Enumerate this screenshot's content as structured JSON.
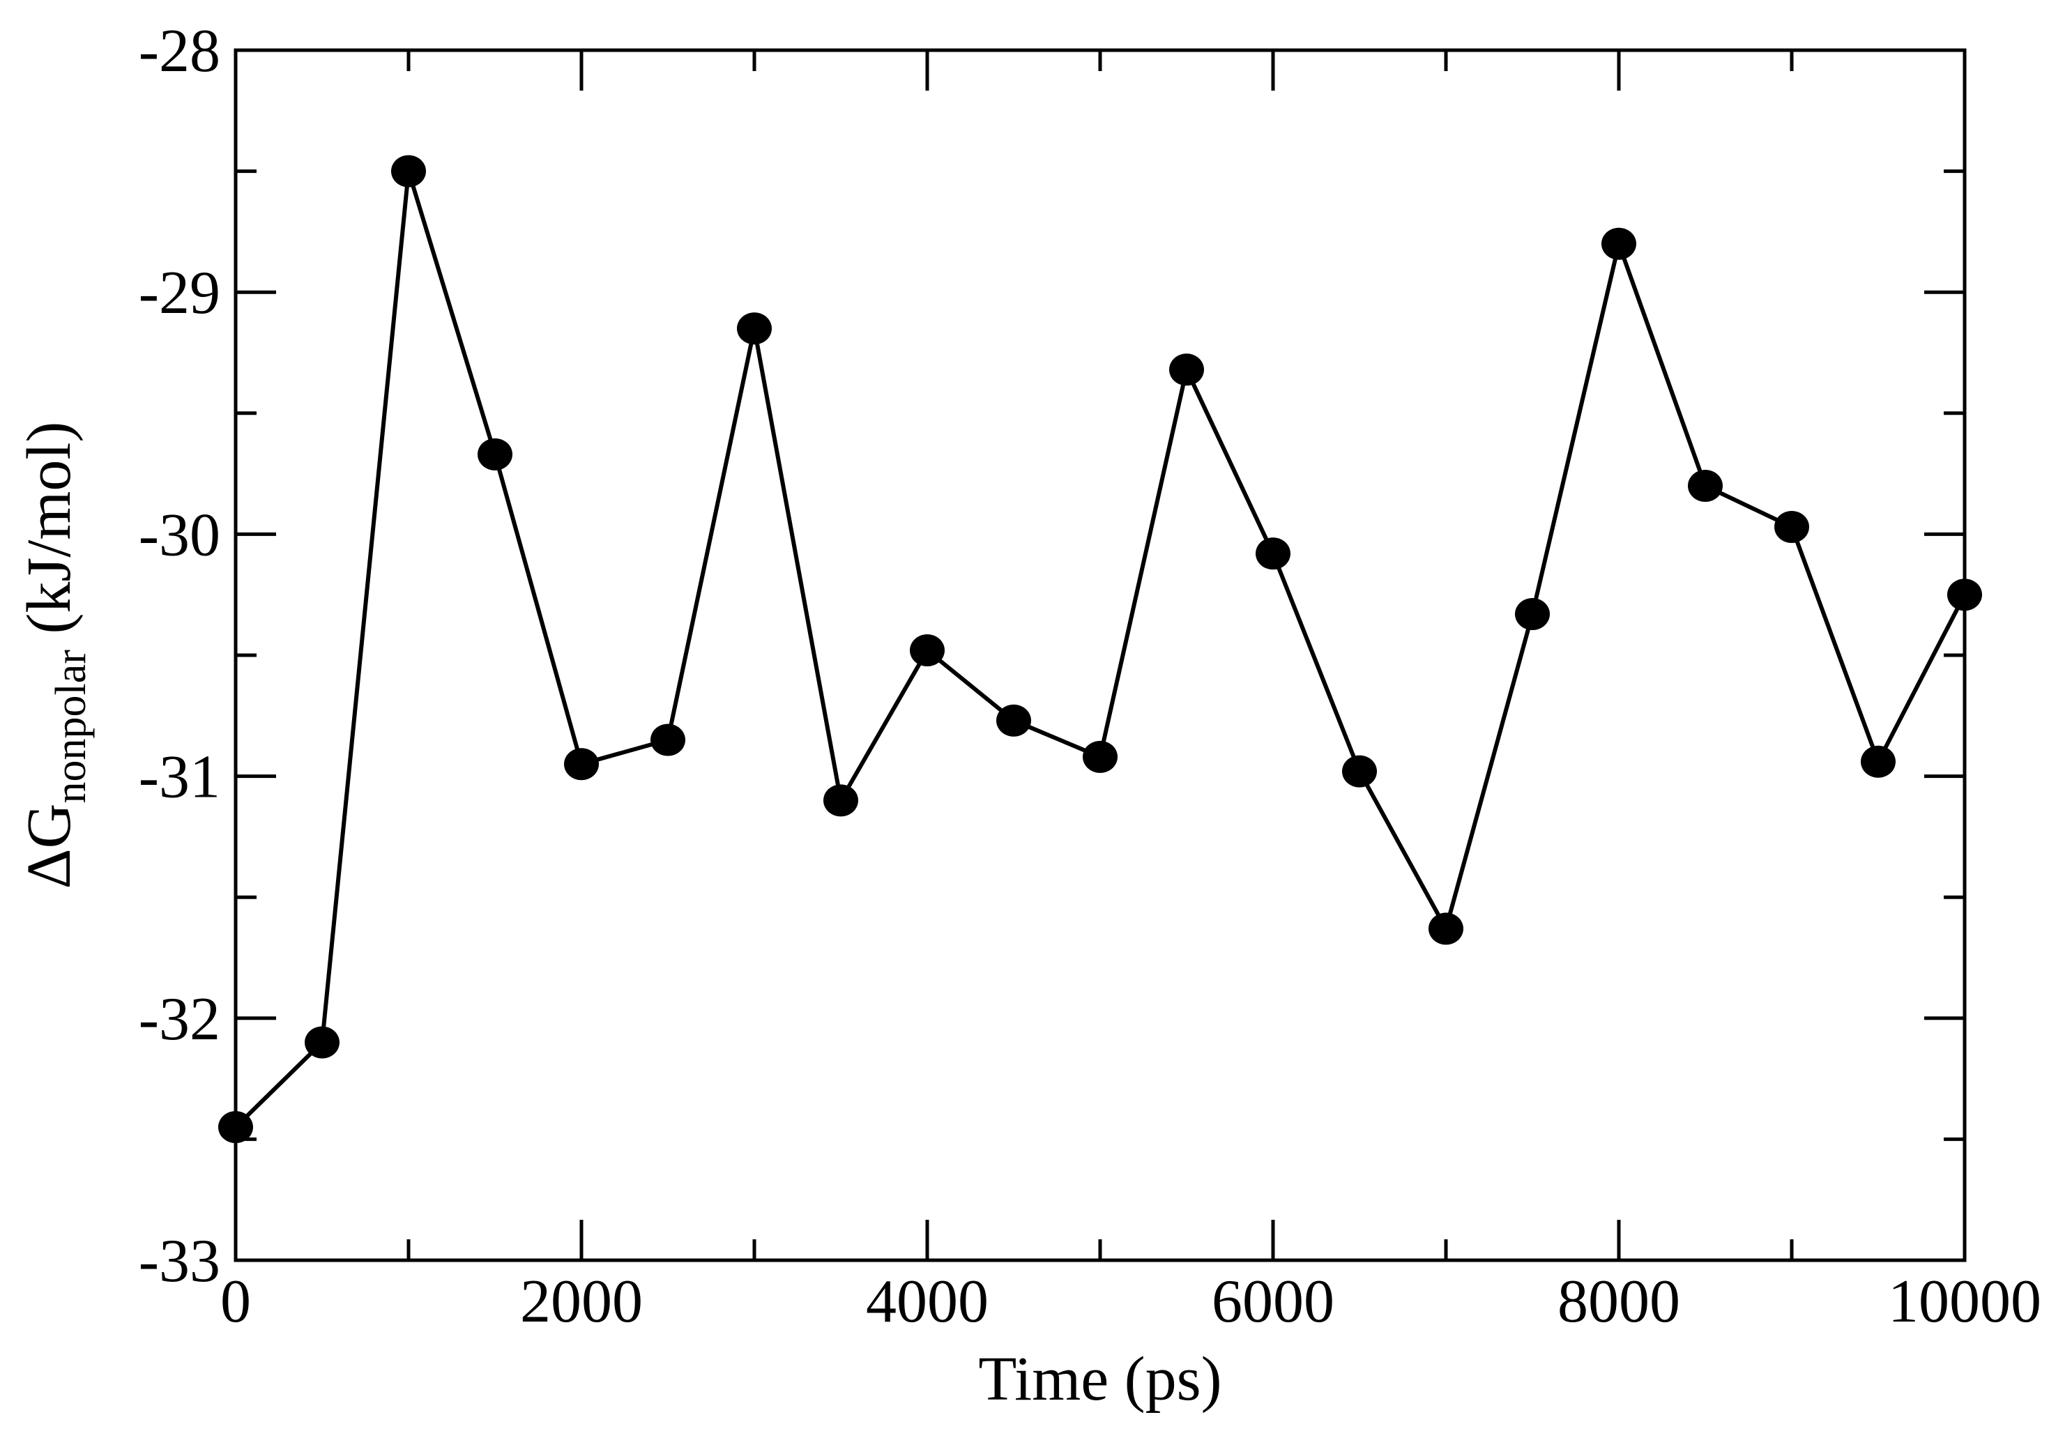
{
  "chart_data": {
    "type": "line",
    "title": "",
    "xlabel": "Time (ps)",
    "ylabel_main": "ΔG",
    "ylabel_sub": "nonpolar",
    "ylabel_unit": " (kJ/mol)",
    "xlim": [
      0,
      10000
    ],
    "ylim": [
      -33,
      -28
    ],
    "xticks": [
      0,
      2000,
      4000,
      6000,
      8000,
      10000
    ],
    "xtick_labels": [
      "0",
      "2000",
      "4000",
      "6000",
      "8000",
      "10000"
    ],
    "x_minor_ticks": [
      1000,
      3000,
      5000,
      7000,
      9000
    ],
    "yticks": [
      -33,
      -32,
      -31,
      -30,
      -29,
      -28
    ],
    "ytick_labels": [
      "-33",
      "-32",
      "-31",
      "-30",
      "-29",
      "-28"
    ],
    "y_minor_ticks": [
      -32.5,
      -31.5,
      -30.5,
      -29.5,
      -28.5
    ],
    "grid": false,
    "legend": "none",
    "line_color": "#000000",
    "marker": "filled-circle",
    "series": [
      {
        "x": [
          0,
          500,
          1000,
          1500,
          2000,
          2500,
          3000,
          3500,
          4000,
          4500,
          5000,
          5500,
          6000,
          6500,
          7000,
          7500,
          8000,
          8500,
          9000,
          9500,
          10000
        ],
        "values": [
          -32.45,
          -32.1,
          -28.5,
          -29.67,
          -30.95,
          -30.85,
          -29.15,
          -31.1,
          -30.48,
          -30.77,
          -30.92,
          -29.32,
          -30.08,
          -30.98,
          -31.63,
          -30.33,
          -28.8,
          -29.8,
          -29.97,
          -30.94,
          -30.25
        ]
      }
    ]
  }
}
